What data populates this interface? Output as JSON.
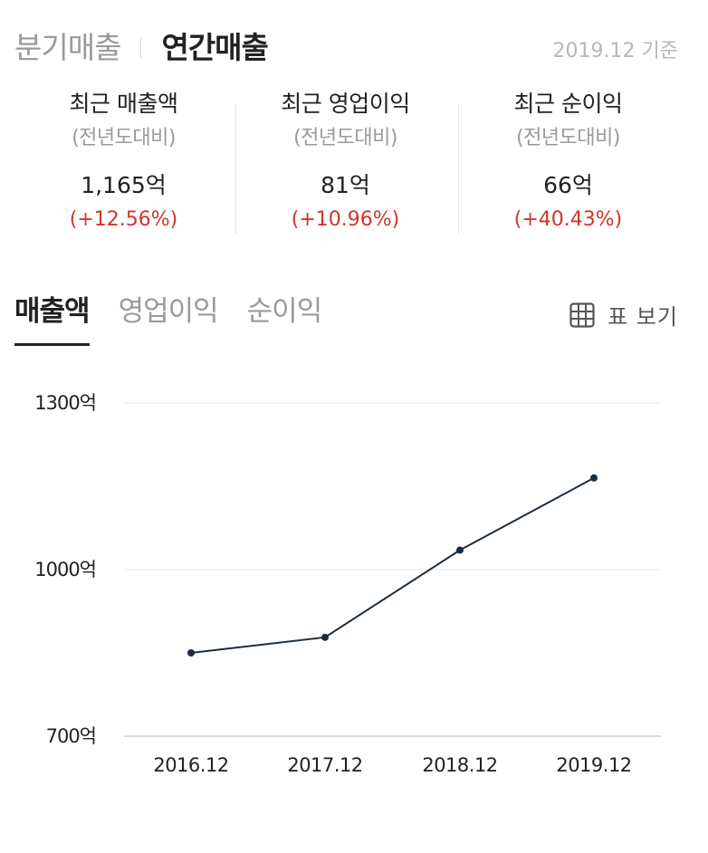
{
  "top_tabs": [
    {
      "label": "분기매출",
      "active": false
    },
    {
      "label": "연간매출",
      "active": true
    }
  ],
  "as_of": "2019.12 기준",
  "summary": [
    {
      "name": "최근 매출액",
      "sub": "(전년도대비)",
      "value": "1,165억",
      "change": "(+12.56%)"
    },
    {
      "name": "최근 영업이익",
      "sub": "(전년도대비)",
      "value": "81억",
      "change": "(+10.96%)"
    },
    {
      "name": "최근 순이익",
      "sub": "(전년도대비)",
      "value": "66억",
      "change": "(+40.43%)"
    }
  ],
  "chart_tabs": [
    {
      "label": "매출액",
      "active": true
    },
    {
      "label": "영업이익",
      "active": false
    },
    {
      "label": "순이익",
      "active": false
    }
  ],
  "table_toggle": {
    "label": "표 보기",
    "icon": "table-grid-icon"
  },
  "colors": {
    "accent": "#222222",
    "positive": "#d1352b",
    "line": "#1d2d3e"
  },
  "chart_data": {
    "type": "line",
    "x": [
      "2016.12",
      "2017.12",
      "2018.12",
      "2019.12"
    ],
    "series": [
      {
        "values": [
          850,
          878,
          1035,
          1165
        ]
      }
    ],
    "ylim": [
      700,
      1300
    ],
    "yticks": [
      700,
      1000,
      1300
    ],
    "ytick_labels": [
      "700억",
      "1000억",
      "1300억"
    ],
    "grid": true
  }
}
